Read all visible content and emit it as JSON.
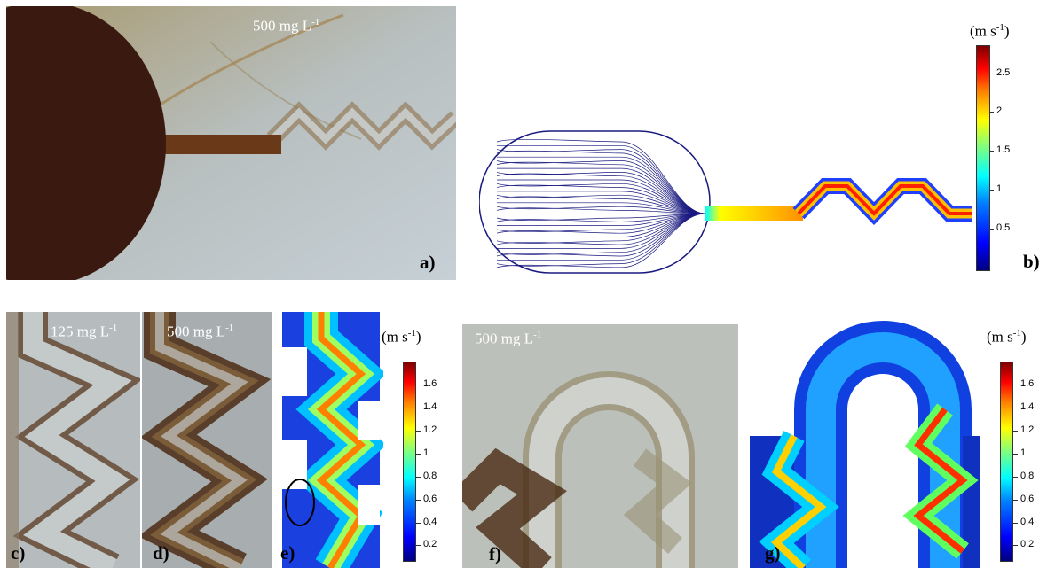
{
  "panels": {
    "a": {
      "label": "a)",
      "concentration": "500 mg L",
      "exp": "-1"
    },
    "b": {
      "label": "b)",
      "unit": "(m s",
      "unit_exp": "-1",
      "unit_close": ")",
      "ticks": [
        "2.5",
        "2",
        "1.5",
        "1",
        "0.5"
      ]
    },
    "c": {
      "label": "c)",
      "concentration": "125 mg L",
      "exp": "-1"
    },
    "d": {
      "label": "d)",
      "concentration": "500 mg L",
      "exp": "-1"
    },
    "e": {
      "label": "e)",
      "unit": "(m s",
      "unit_exp": "-1",
      "unit_close": ")",
      "ticks": [
        "1.6",
        "1.4",
        "1.2",
        "1",
        "0.8",
        "0.6",
        "0.4",
        "0.2"
      ]
    },
    "f": {
      "label": "f)",
      "concentration": "500 mg L",
      "exp": "-1"
    },
    "g": {
      "label": "g)",
      "unit": "(m s",
      "unit_exp": "-1",
      "unit_close": ")",
      "ticks": [
        "1.6",
        "1.4",
        "1.2",
        "1",
        "0.8",
        "0.6",
        "0.4",
        "0.2"
      ]
    }
  },
  "colors": {
    "deposit": "#3a1a10",
    "streamline": "#1a1a80",
    "photo_bg": "#b9c0c0"
  }
}
